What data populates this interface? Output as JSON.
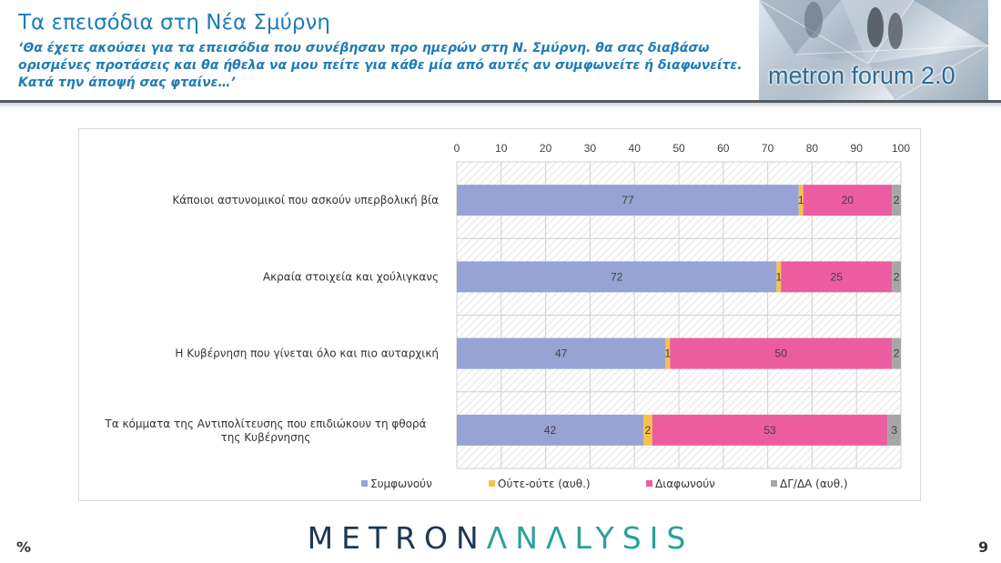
{
  "header": {
    "title": "Τα επεισόδια στη Νέα Σμύρνη",
    "subtitle": "‘Θα έχετε ακούσει για τα επεισόδια που συνέβησαν προ ημερών στη Ν. Σμύρνη. θα σας διαβάσω ορισμένες προτάσεις και θα ήθελα να μου πείτε για κάθε μία από αυτές αν συμφωνείτε ή διαφωνείτε. Κατά την άποψή σας φταίνε…’",
    "logo_text": "metron forum 2.0"
  },
  "chart_data": {
    "type": "bar",
    "orientation": "horizontal",
    "stacked": true,
    "categories": [
      "Κάποιοι αστυνομικοί που ασκούν υπερβολική βία",
      "Ακραία στοιχεία και χούλιγκανς",
      "Η Κυβέρνηση που γίνεται όλο και πιο αυταρχική",
      "Τα κόμματα της Αντιπολίτευσης που επιδιώκουν τη φθορά της Κυβέρνησης"
    ],
    "series": [
      {
        "name": "Συμφωνούν",
        "color": "#97a3d4",
        "values": [
          77,
          72,
          47,
          42
        ]
      },
      {
        "name": "Ούτε-ούτε (αυθ.)",
        "color": "#f7c14c",
        "values": [
          1,
          1,
          1,
          2
        ]
      },
      {
        "name": "Διαφωνούν",
        "color": "#ec5d9f",
        "values": [
          20,
          25,
          50,
          53
        ]
      },
      {
        "name": "ΔΓ/ΔΑ (αυθ.)",
        "color": "#a6a6a6",
        "values": [
          2,
          2,
          2,
          3
        ]
      }
    ],
    "xticks": [
      0,
      10,
      20,
      30,
      40,
      50,
      60,
      70,
      80,
      90,
      100
    ],
    "xlim": [
      0,
      100
    ],
    "xaxis_position": "top",
    "grid": true,
    "legend_position": "bottom"
  },
  "footer": {
    "brand_part1": "METRON",
    "brand_part2": "ΛNΛLYSIS",
    "unit": "%",
    "page_number": "9"
  }
}
